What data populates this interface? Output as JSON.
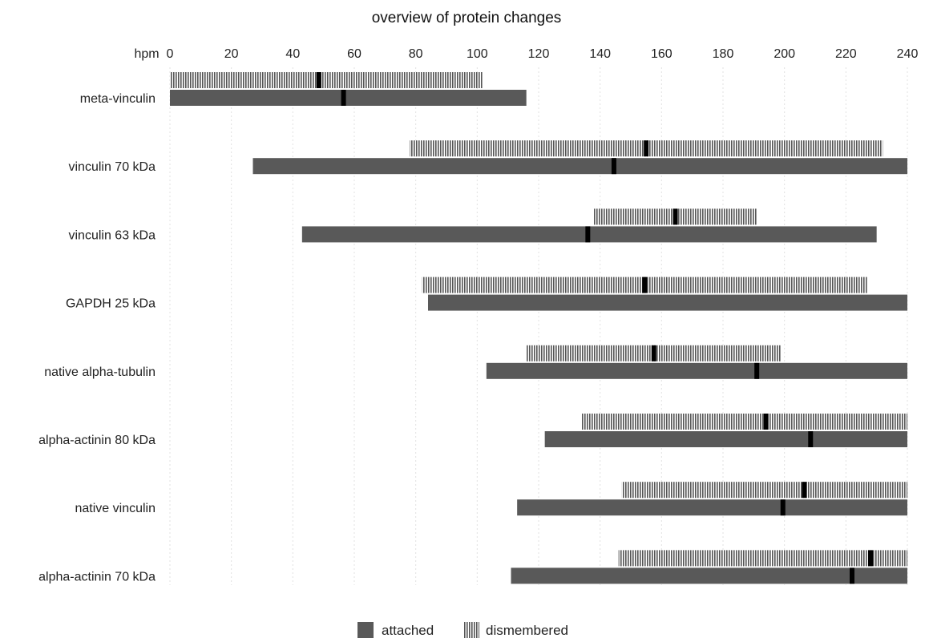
{
  "chart_data": {
    "type": "bar",
    "orientation": "horizontal",
    "title": "overview of protein changes",
    "xaxis_label": "hpm",
    "xlim": [
      0,
      240
    ],
    "xticks": [
      0,
      20,
      40,
      60,
      80,
      100,
      120,
      140,
      160,
      180,
      200,
      220,
      240
    ],
    "grid": true,
    "legend_position": "bottom",
    "colors": {
      "attached": "#595959",
      "dismembered_stripe": "#555555",
      "dismembered_bg": "#ffffff",
      "marker": "#000000",
      "grid": "#e2e2e2"
    },
    "categories": [
      "meta-vinculin",
      "vinculin 70 kDa",
      "vinculin 63 kDa",
      "GAPDH 25 kDa",
      "native alpha-tubulin",
      "alpha-actinin 80 kDa",
      "native vinculin",
      "alpha-actinin 70 kDa"
    ],
    "series": [
      {
        "name": "attached",
        "style": "solid",
        "ranges": [
          [
            0,
            116
          ],
          [
            27,
            240
          ],
          [
            43,
            230
          ],
          [
            84,
            240
          ],
          [
            103,
            240
          ],
          [
            122,
            240
          ],
          [
            113,
            240
          ],
          [
            111,
            240
          ]
        ],
        "markers": [
          56.5,
          144.5,
          136,
          null,
          191,
          208.5,
          199.5,
          222
        ]
      },
      {
        "name": "dismembered",
        "style": "striped",
        "ranges": [
          [
            0,
            102
          ],
          [
            78,
            232
          ],
          [
            138,
            191
          ],
          [
            82,
            227
          ],
          [
            116,
            199
          ],
          [
            134,
            240
          ],
          [
            147,
            240
          ],
          [
            146,
            240
          ]
        ],
        "markers": [
          48.5,
          155,
          164.5,
          154.5,
          157.5,
          194,
          206.5,
          228
        ]
      }
    ]
  }
}
